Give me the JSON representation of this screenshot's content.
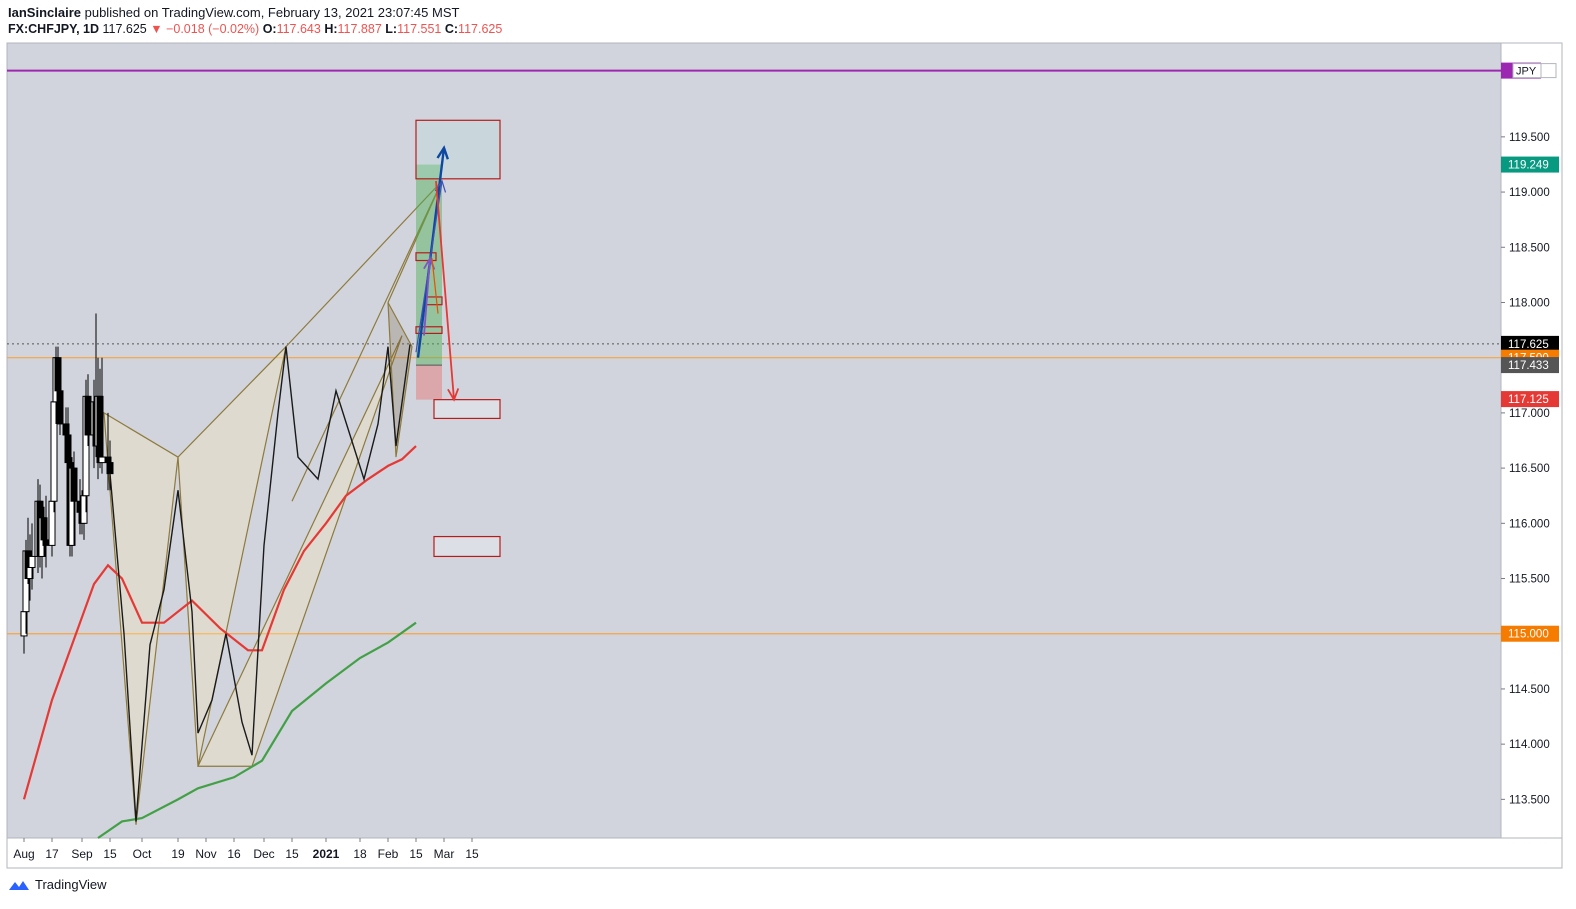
{
  "header": {
    "publisher": "IanSinclaire",
    "published_text": "published on TradingView.com, February 13, 2021 23:07:45 MST",
    "symbol": "FX:CHFJPY, 1D",
    "last": "117.625",
    "change": "▼ −0.018 (−0.02%)",
    "o_label": "O:",
    "o": "117.643",
    "h_label": "H:",
    "h": "117.887",
    "l_label": "L:",
    "l": "117.551",
    "c_label": "C:",
    "c": "117.625"
  },
  "footer": {
    "brand": "TradingView"
  },
  "chart_data": {
    "type": "candlestick",
    "currency_badge": "JPY",
    "ylim": [
      113.15,
      120.35
    ],
    "y_ticks": [
      113.5,
      114.0,
      114.5,
      115.0,
      115.5,
      116.0,
      116.5,
      117.0,
      117.5,
      118.0,
      118.5,
      119.0,
      119.5
    ],
    "y_tick_labels": [
      "113.500",
      "114.000",
      "114.500",
      "115.000",
      "115.500",
      "116.000",
      "116.500",
      "117.000",
      "117.500",
      "118.000",
      "118.500",
      "119.000",
      "119.500"
    ],
    "x_ticks": [
      {
        "label": "Aug",
        "date": "2020-08-03"
      },
      {
        "label": "17",
        "date": "2020-08-17"
      },
      {
        "label": "Sep",
        "date": "2020-09-01"
      },
      {
        "label": "15",
        "date": "2020-09-15"
      },
      {
        "label": "Oct",
        "date": "2020-10-01"
      },
      {
        "label": "19",
        "date": "2020-10-19"
      },
      {
        "label": "Nov",
        "date": "2020-11-02"
      },
      {
        "label": "16",
        "date": "2020-11-16"
      },
      {
        "label": "Dec",
        "date": "2020-12-01"
      },
      {
        "label": "15",
        "date": "2020-12-15"
      },
      {
        "label": "2021",
        "date": "2021-01-01"
      },
      {
        "label": "18",
        "date": "2021-01-18"
      },
      {
        "label": "Feb",
        "date": "2021-02-01"
      },
      {
        "label": "15",
        "date": "2021-02-15"
      },
      {
        "label": "Mar",
        "date": "2021-03-01"
      },
      {
        "label": "15",
        "date": "2021-03-15"
      }
    ],
    "price_labels": [
      {
        "text": "119.249",
        "value": 119.249,
        "color": "#089981"
      },
      {
        "text": "117.625",
        "value": 117.625,
        "color": "#000000"
      },
      {
        "text": "117.500",
        "value": 117.5,
        "color": "#f57c00"
      },
      {
        "text": "117.433",
        "value": 117.433,
        "color": "#555555"
      },
      {
        "text": "117.125",
        "value": 117.125,
        "color": "#e53935"
      },
      {
        "text": "115.000",
        "value": 115.0,
        "color": "#f57c00"
      }
    ],
    "horizontal_lines": [
      {
        "value": 120.1,
        "color": "#9c27b0"
      },
      {
        "value": 117.5,
        "color": "#f7a440"
      },
      {
        "value": 115.0,
        "color": "#f7a440"
      },
      {
        "value": 117.625,
        "color": "#555555",
        "style": "dotted"
      }
    ],
    "candles": [
      {
        "date": "2020-08-03",
        "o": 114.98,
        "h": 115.25,
        "l": 114.82,
        "c": 115.2
      },
      {
        "date": "2020-08-04",
        "o": 115.2,
        "h": 115.85,
        "l": 115.0,
        "c": 115.75
      },
      {
        "date": "2020-08-05",
        "o": 115.75,
        "h": 116.05,
        "l": 115.45,
        "c": 115.5
      },
      {
        "date": "2020-08-06",
        "o": 115.5,
        "h": 115.9,
        "l": 115.3,
        "c": 115.6
      },
      {
        "date": "2020-08-07",
        "o": 115.6,
        "h": 116.0,
        "l": 115.4,
        "c": 115.7
      },
      {
        "date": "2020-08-10",
        "o": 115.7,
        "h": 116.4,
        "l": 115.55,
        "c": 116.2
      },
      {
        "date": "2020-08-11",
        "o": 116.2,
        "h": 116.35,
        "l": 115.6,
        "c": 115.7
      },
      {
        "date": "2020-08-12",
        "o": 115.7,
        "h": 116.1,
        "l": 115.5,
        "c": 116.05
      },
      {
        "date": "2020-08-13",
        "o": 116.05,
        "h": 116.15,
        "l": 115.7,
        "c": 115.85
      },
      {
        "date": "2020-08-14",
        "o": 115.85,
        "h": 116.25,
        "l": 115.6,
        "c": 115.8
      },
      {
        "date": "2020-08-17",
        "o": 115.8,
        "h": 116.4,
        "l": 115.7,
        "c": 116.2
      },
      {
        "date": "2020-08-18",
        "o": 116.2,
        "h": 117.2,
        "l": 116.1,
        "c": 117.1
      },
      {
        "date": "2020-08-19",
        "o": 117.1,
        "h": 117.6,
        "l": 116.9,
        "c": 117.5
      },
      {
        "date": "2020-08-20",
        "o": 117.5,
        "h": 117.6,
        "l": 116.95,
        "c": 117.2
      },
      {
        "date": "2020-08-21",
        "o": 117.2,
        "h": 117.3,
        "l": 116.8,
        "c": 116.9
      },
      {
        "date": "2020-08-24",
        "o": 116.9,
        "h": 117.05,
        "l": 116.55,
        "c": 116.8
      },
      {
        "date": "2020-08-25",
        "o": 116.8,
        "h": 117.05,
        "l": 116.35,
        "c": 116.55
      },
      {
        "date": "2020-08-26",
        "o": 116.55,
        "h": 116.7,
        "l": 115.7,
        "c": 115.8
      },
      {
        "date": "2020-08-27",
        "o": 115.8,
        "h": 116.6,
        "l": 115.7,
        "c": 116.5
      },
      {
        "date": "2020-08-28",
        "o": 116.5,
        "h": 116.65,
        "l": 115.8,
        "c": 116.2
      },
      {
        "date": "2020-08-31",
        "o": 116.2,
        "h": 116.4,
        "l": 115.9,
        "c": 116.1
      },
      {
        "date": "2020-09-01",
        "o": 116.1,
        "h": 116.3,
        "l": 115.9,
        "c": 116.0
      },
      {
        "date": "2020-09-02",
        "o": 116.0,
        "h": 116.3,
        "l": 115.85,
        "c": 116.25
      },
      {
        "date": "2020-09-03",
        "o": 116.25,
        "h": 117.3,
        "l": 116.1,
        "c": 117.15
      },
      {
        "date": "2020-09-04",
        "o": 117.15,
        "h": 117.35,
        "l": 116.7,
        "c": 116.8
      },
      {
        "date": "2020-09-07",
        "o": 116.8,
        "h": 117.3,
        "l": 116.5,
        "c": 117.1
      },
      {
        "date": "2020-09-08",
        "o": 117.1,
        "h": 117.9,
        "l": 116.6,
        "c": 116.7
      },
      {
        "date": "2020-09-09",
        "o": 116.7,
        "h": 117.5,
        "l": 116.4,
        "c": 117.15
      },
      {
        "date": "2020-09-10",
        "o": 117.15,
        "h": 117.4,
        "l": 116.5,
        "c": 116.55
      },
      {
        "date": "2020-09-11",
        "o": 116.55,
        "h": 117.5,
        "l": 116.45,
        "c": 116.6
      },
      {
        "date": "2020-09-14",
        "o": 116.6,
        "h": 117.0,
        "l": 116.3,
        "c": 116.55
      },
      {
        "date": "2020-09-15",
        "o": 116.55,
        "h": 116.75,
        "l": 116.3,
        "c": 116.45
      }
    ]
  }
}
